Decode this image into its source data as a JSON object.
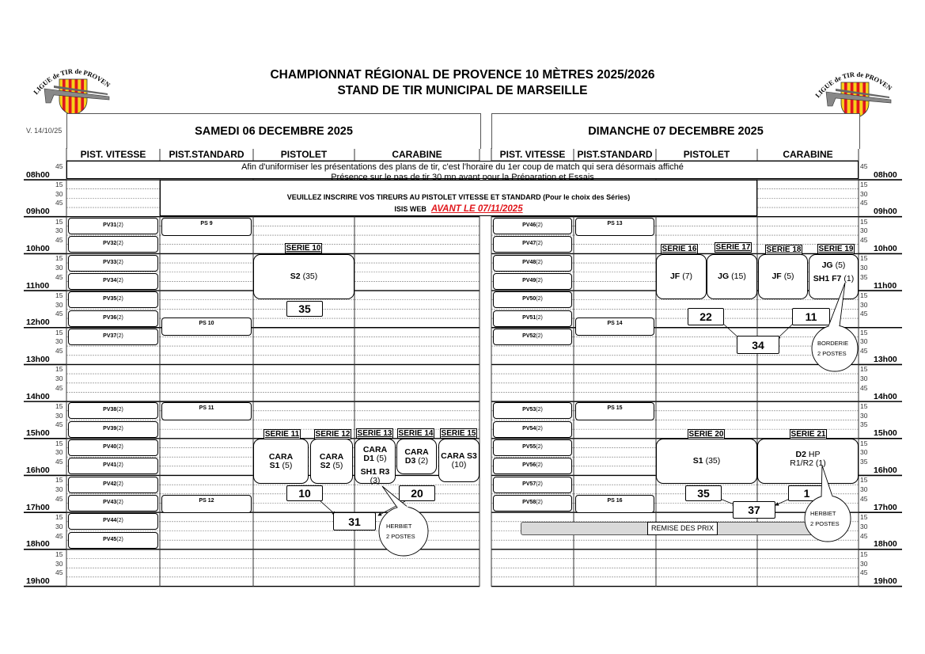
{
  "header": {
    "title_line1": "CHAMPIONNAT RÉGIONAL DE PROVENCE 10 MÈTRES 2025/2026",
    "title_line2": "STAND DE TIR MUNICIPAL DE MARSEILLE",
    "version": "V. 14/10/25",
    "logo_text": "LIGUE de TIR de PROVENCE"
  },
  "notice": {
    "line1": "Afin d'uniformiser les présentations des plans de tir, c'est l'horaire du 1er coup de match qui sera désormais affiché",
    "line2": "Présence sur le pas de tir 30 mn avant pour la Préparation et Essais",
    "register": "VEUILLEZ INSCRIRE VOS TIREURS AU PISTOLET VITESSE ET STANDARD (Pour le choix des Séries)",
    "isis": "ISIS WEB",
    "deadline": "AVANT LE 07/11/2025"
  },
  "colors": {
    "deadline": "#e0161b",
    "remise_bar": "#d9d9d9",
    "logo_red": "#e0161b",
    "logo_yellow": "#f7d117"
  },
  "times": {
    "left_minutes": [
      "45",
      "",
      "15",
      "30",
      "45",
      "",
      "15",
      "30",
      "45",
      "",
      "15",
      "30",
      "45",
      "",
      "15",
      "30",
      "45",
      "",
      "15",
      "30",
      "45",
      "",
      "15",
      "30",
      "45",
      "",
      "15",
      "30",
      "45",
      "",
      "15",
      "30",
      "45",
      "",
      "15",
      "30",
      "45",
      "",
      "15",
      "30",
      "45",
      "",
      "15",
      "30",
      "45",
      ""
    ],
    "right_minutes": [
      "45",
      "",
      "15",
      "30",
      "45",
      "",
      "15",
      "30",
      "45",
      "",
      "15",
      "30",
      "35",
      "",
      "15",
      "30",
      "45",
      "",
      "15",
      "30",
      "45",
      "",
      "15",
      "30",
      "45",
      "",
      "15",
      "30",
      "35",
      "",
      "15",
      "30",
      "35",
      "",
      "15",
      "30",
      "45",
      "",
      "15",
      "30",
      "45",
      "",
      "15",
      "30",
      "45",
      ""
    ],
    "left_hours": [
      "08h00",
      "09h00",
      "10h00",
      "11h00",
      "12h00",
      "13h00",
      "14h00",
      "15h00",
      "16h00",
      "17h00",
      "18h00",
      "19h00"
    ],
    "right_hours": [
      "08h00",
      "09h00",
      "10h00",
      "11h00",
      "",
      "13h00",
      "14h00",
      "15h00",
      "16h00",
      "17h00",
      "18h00",
      "19h00"
    ]
  },
  "days": [
    {
      "title": "SAMEDI 06 DECEMBRE 2025",
      "columns": [
        "PIST. VITESSE",
        "PIST.STANDARD",
        "PISTOLET",
        "CARABINE"
      ],
      "pv": [
        [
          "PV31",
          "(2)"
        ],
        [
          "PV32",
          "(2)"
        ],
        [
          "PV33",
          "(2)"
        ],
        [
          "PV34",
          "(2)"
        ],
        [
          "PV35",
          "(2)"
        ],
        [
          "PV36",
          "(2)"
        ],
        [
          "PV37",
          "(2)"
        ],
        [
          "PV38",
          "(2)"
        ],
        [
          "PV39",
          "(2)"
        ],
        [
          "PV40",
          "(2)"
        ],
        [
          "PV41",
          "(2)"
        ],
        [
          "PV42",
          "(2)"
        ],
        [
          "PV43",
          "(2)"
        ],
        [
          "PV44",
          "(2)"
        ],
        [
          "PV45",
          "(2)"
        ]
      ],
      "ps": [
        "PS 9",
        "PS 10",
        "PS 11",
        "PS 12"
      ],
      "series": [
        "SERIE 10",
        "SERIE 11",
        "SERIE 12",
        "SERIE 13",
        "SERIE 14",
        "SERIE 15"
      ],
      "boxes": [
        [
          [
            "S2",
            "(35)"
          ]
        ],
        [
          [
            "CARA",
            ""
          ],
          [
            "S1",
            "(5)"
          ]
        ],
        [
          [
            "CARA",
            ""
          ],
          [
            "S2",
            "(5)"
          ]
        ],
        [
          [
            "CARA",
            ""
          ],
          [
            "D1",
            "(5)"
          ],
          [
            "SH1 R3",
            ""
          ],
          [
            "",
            "(3)"
          ]
        ],
        [
          [
            "CARA",
            ""
          ],
          [
            "D3",
            "(2)"
          ]
        ],
        [
          [
            "CARA S3",
            ""
          ],
          [
            "",
            "(10)"
          ]
        ]
      ],
      "tickets": [
        "35",
        "10",
        "20",
        "31"
      ],
      "callouts": [
        [
          "HERBIET",
          "2 POSTES"
        ]
      ]
    },
    {
      "title": "DIMANCHE 07 DECEMBRE 2025",
      "columns": [
        "PIST. VITESSE",
        "PIST.STANDARD",
        "PISTOLET",
        "CARABINE"
      ],
      "pv": [
        [
          "PV46",
          "(2)"
        ],
        [
          "PV47",
          "(2)"
        ],
        [
          "PV48",
          "(2)"
        ],
        [
          "PV49",
          "(2)"
        ],
        [
          "PV50",
          "(2)"
        ],
        [
          "PV51",
          "(2)"
        ],
        [
          "PV52",
          "(2)"
        ],
        [
          "PV53",
          "(2)"
        ],
        [
          "PV54",
          "(2)"
        ],
        [
          "PV55",
          "(2)"
        ],
        [
          "PV56",
          "(2)"
        ],
        [
          "PV57",
          "(2)"
        ],
        [
          "PV58",
          "(2)"
        ]
      ],
      "ps": [
        "PS 13",
        "PS 14",
        "PS 15",
        "PS 16"
      ],
      "series": [
        "SERIE 16",
        "SERIE 17",
        "SERIE 18",
        "SERIE 19",
        "SERIE 20",
        "SERIE 21"
      ],
      "boxes": [
        [
          [
            "JF",
            "(7)"
          ]
        ],
        [
          [
            "JG",
            "(15)"
          ]
        ],
        [
          [
            "JF",
            "(5)"
          ]
        ],
        [
          [
            "JG",
            "(5)"
          ],
          [
            "SH1 F7",
            "(1)"
          ]
        ],
        [
          [
            "S1",
            "(35)"
          ]
        ],
        [
          [
            "D2",
            "HP"
          ],
          [
            "",
            "R1/R2 (1)"
          ]
        ]
      ],
      "tickets": [
        "22",
        "11",
        "34",
        "35",
        "1",
        "37"
      ],
      "callouts": [
        [
          "BORDERIE",
          "2 POSTES"
        ],
        [
          "HERBIET",
          "2 POSTES"
        ]
      ],
      "remise": "REMISE DES PRIX"
    }
  ]
}
